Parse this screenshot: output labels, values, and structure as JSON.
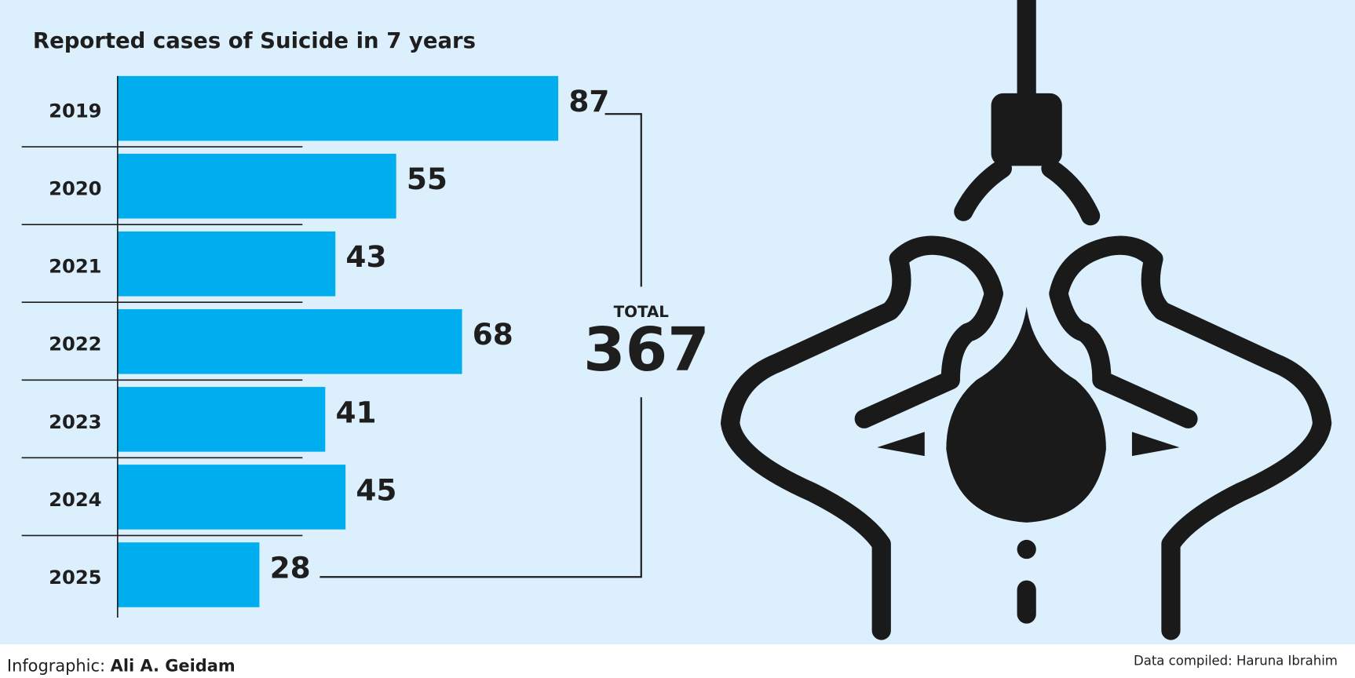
{
  "chart_data": {
    "type": "bar",
    "orientation": "horizontal",
    "title": "Reported cases of Suicide in 7 years",
    "categories": [
      "2019",
      "2020",
      "2021",
      "2022",
      "2023",
      "2024",
      "2025"
    ],
    "values": [
      87,
      55,
      43,
      68,
      41,
      45,
      28
    ],
    "color": "#00adef",
    "total_label": "TOTAL",
    "total": 367,
    "credit_label": "Infographic:",
    "credit_name": "Ali A. Geidam",
    "source": "Data compiled: Haruna Ibrahim"
  }
}
